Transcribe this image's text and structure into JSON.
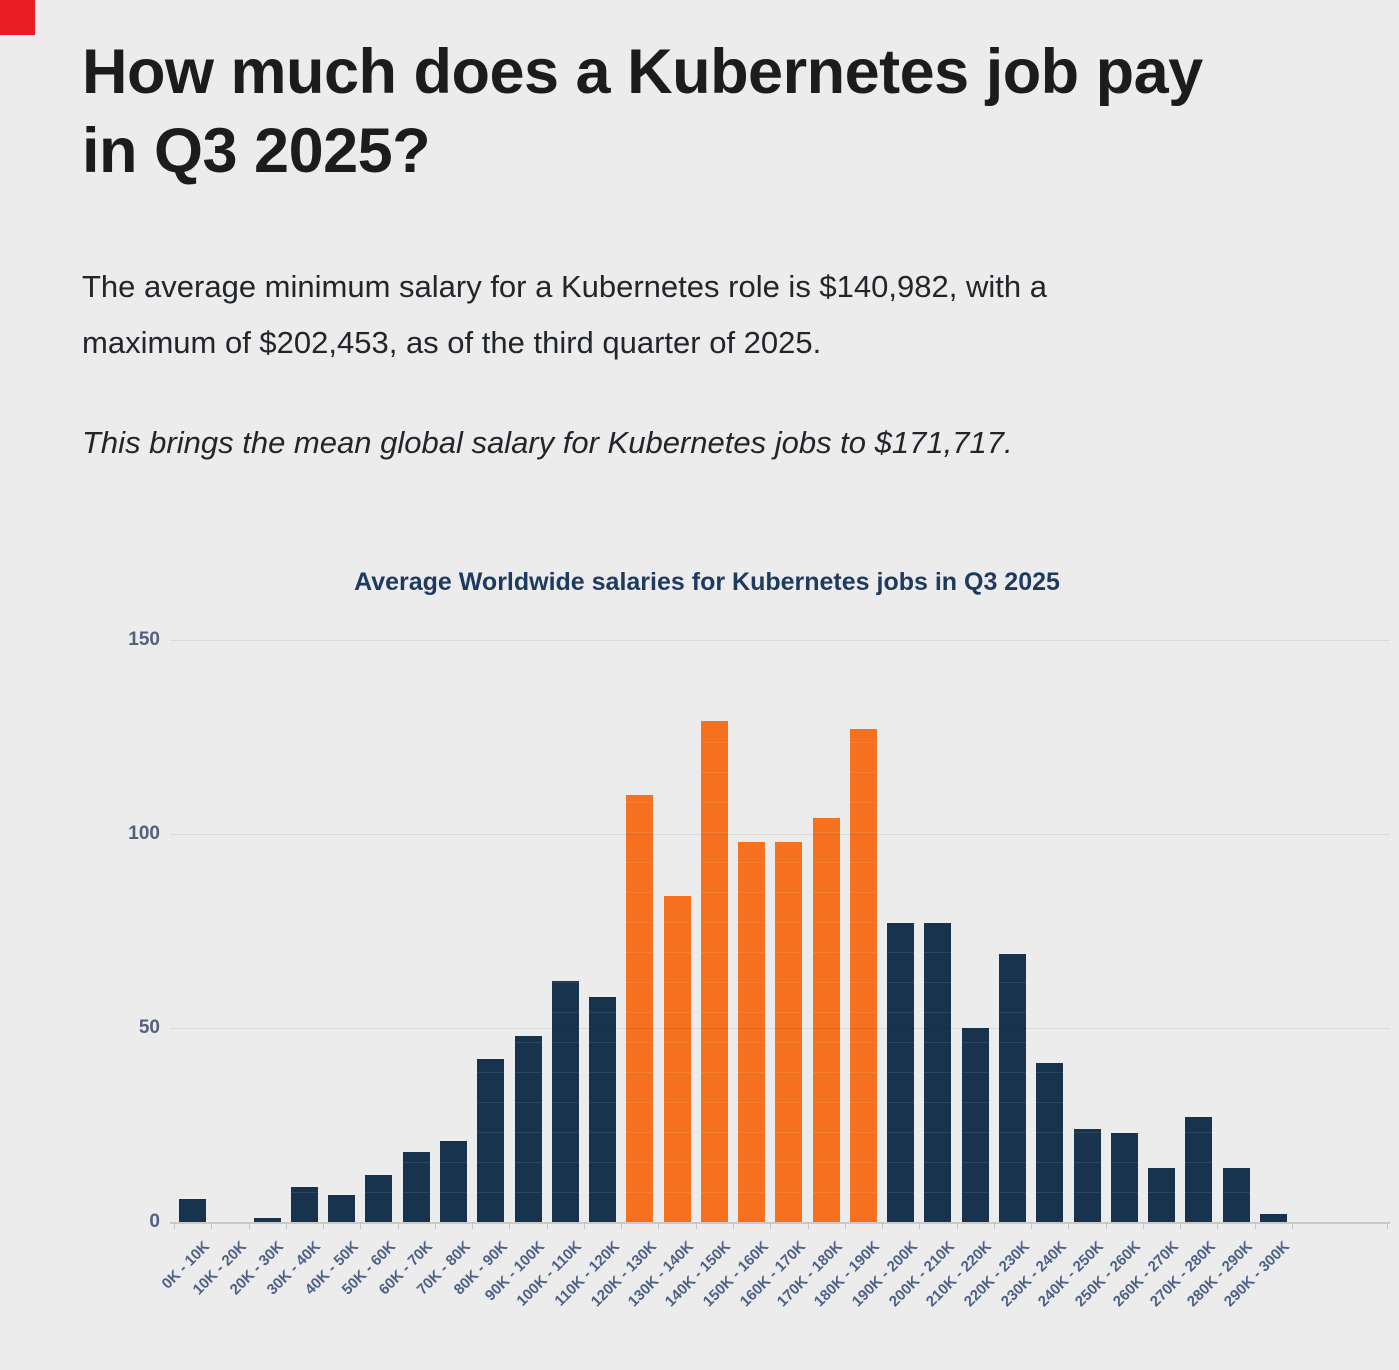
{
  "decor": {
    "corner_color": "#ea1d25"
  },
  "article": {
    "heading_lines": [
      "How much does a Kubernetes job pay",
      "in Q3 2025?"
    ],
    "paragraph1_lines": [
      "The average minimum salary for a Kubernetes role is $140,982, with a",
      "maximum of $202,453, as of the third quarter of 2025."
    ],
    "paragraph2": "This brings the mean global salary for Kubernetes jobs to $171,717."
  },
  "chart_data": {
    "type": "bar",
    "title": "Average Worldwide salaries for Kubernetes jobs in Q3 2025",
    "categories": [
      "0K - 10K",
      "10K - 20K",
      "20K - 30K",
      "30K - 40K",
      "40K - 50K",
      "50K - 60K",
      "60K - 70K",
      "70K - 80K",
      "80K - 90K",
      "90K - 100K",
      "100K - 110K",
      "110K - 120K",
      "120K - 130K",
      "130K - 140K",
      "140K - 150K",
      "150K - 160K",
      "160K - 170K",
      "170K - 180K",
      "180K - 190K",
      "190K - 200K",
      "200K - 210K",
      "210K - 220K",
      "220K - 230K",
      "230K - 240K",
      "240K - 250K",
      "250K - 260K",
      "260K - 270K",
      "270K - 280K",
      "280K - 290K",
      "290K - 300K"
    ],
    "values": [
      6,
      0,
      1,
      9,
      7,
      12,
      18,
      21,
      42,
      48,
      62,
      58,
      110,
      84,
      129,
      98,
      98,
      104,
      127,
      77,
      77,
      50,
      69,
      41,
      24,
      23,
      14,
      27,
      14,
      2
    ],
    "highlight_indices": [
      12,
      13,
      14,
      15,
      16,
      17,
      18
    ],
    "bar_color": "#17334d",
    "highlight_color": "#f5711f",
    "yticks": [
      0,
      50,
      100,
      150
    ],
    "ylim": [
      0,
      150
    ],
    "xlabel": "",
    "ylabel": "",
    "grid": true,
    "legend": "none",
    "x_tick_label_color": "#4d6186",
    "y_tick_label_color": "#53617e",
    "title_color": "#1e3a5f"
  }
}
